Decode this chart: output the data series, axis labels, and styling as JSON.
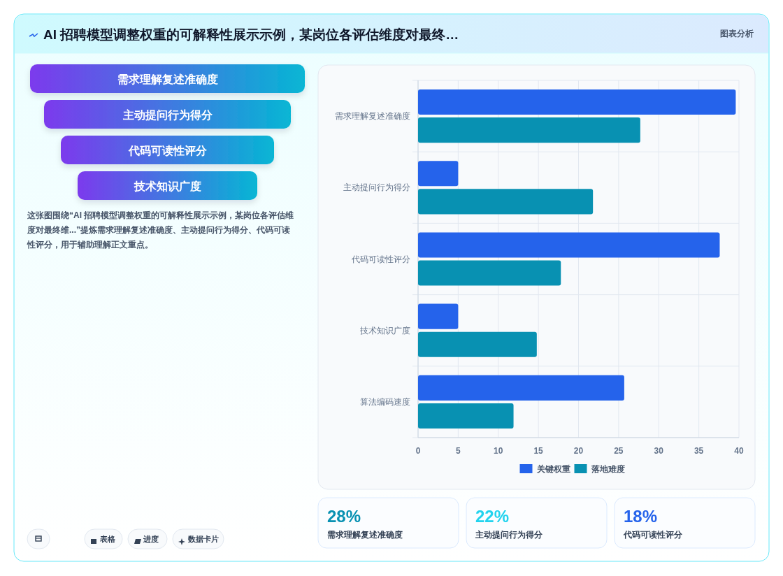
{
  "chart_data": [
    {
      "type": "other",
      "title": "AI 招聘模型调整权重的可解释性展示示例，某岗位各评估维度对最终…",
      "annotations": [
        "图表分析",
        "需求理解复述准确度",
        "主动提问行为得分",
        "代码可读性评分",
        "技术知识广度",
        "这张图围绕“AI 招聘模型调整权重的可解释性展示示例，某岗位各评估维度对最终维...”提炼需求理解复述准确度、主动提问行为得分、代码可读性评分，用于辅助理解正文重点。",
        "表格",
        "进度",
        "数据卡片"
      ]
    },
    {
      "type": "bar",
      "orientation": "horizontal",
      "categories": [
        "需求理解复述准确度",
        "主动提问行为得分",
        "代码可读性评分",
        "技术知识广度",
        "算法编码速度"
      ],
      "series": [
        {
          "name": "关键权重",
          "color": "#2563eb",
          "values": [
            39.6,
            5,
            37.6,
            5,
            25.7
          ]
        },
        {
          "name": "落地难度",
          "color": "#0891b2",
          "values": [
            27.7,
            21.8,
            17.8,
            14.8,
            11.9
          ]
        }
      ],
      "xlim": [
        0,
        40
      ],
      "xticks": [
        0,
        5,
        10,
        15,
        20,
        25,
        30,
        35,
        40
      ],
      "grid": true,
      "legend": "bottom"
    },
    {
      "type": "other",
      "annotations": [
        "28%",
        "需求理解复述准确度",
        "22%",
        "主动提问行为得分",
        "18%",
        "代码可读性评分"
      ]
    }
  ]
}
